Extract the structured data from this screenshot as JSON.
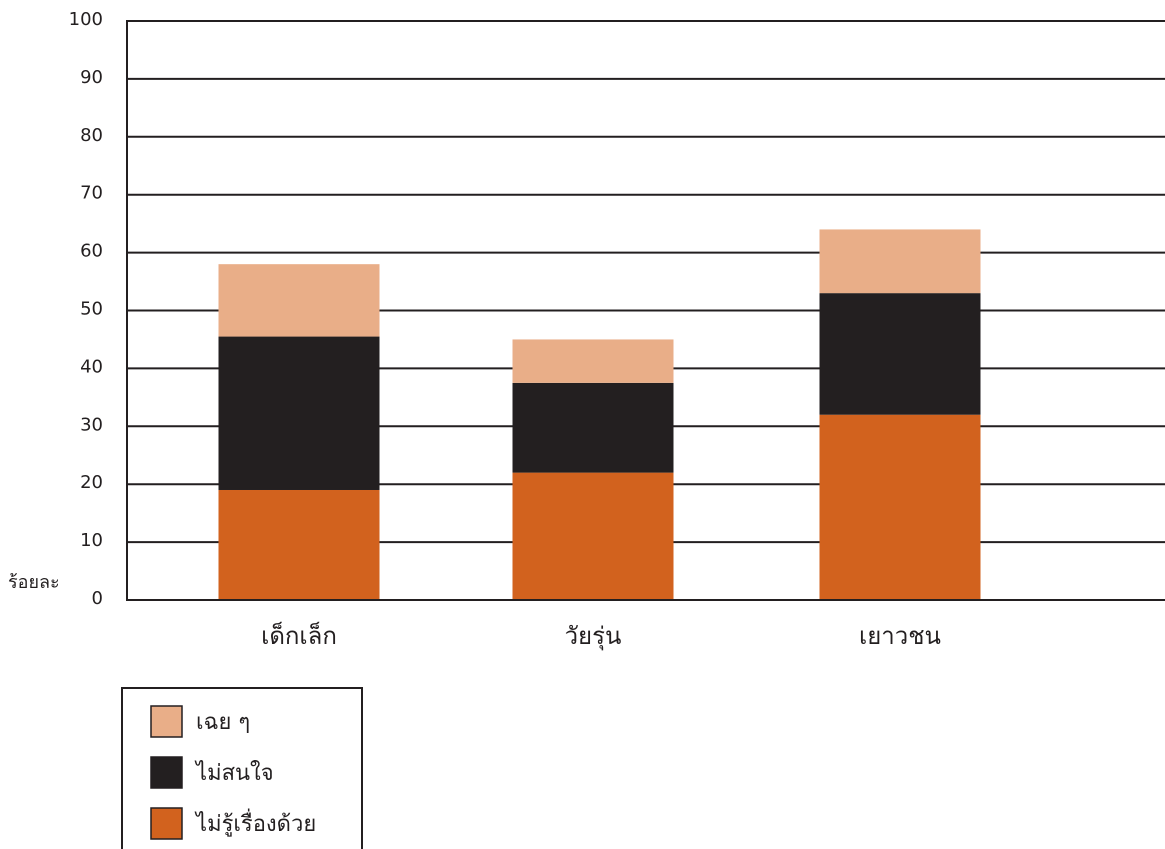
{
  "chart_data": {
    "type": "bar",
    "stacked": true,
    "categories": [
      "เด็กเล็ก",
      "วัยรุ่น",
      "เยาวชน"
    ],
    "series": [
      {
        "name": "ไม่รู้เรื่องด้วย",
        "values": [
          19,
          22,
          32
        ],
        "color": "#d2621e"
      },
      {
        "name": "ไม่สนใจ",
        "values": [
          26.5,
          15.5,
          21
        ],
        "color": "#231f20"
      },
      {
        "name": "เฉย ๆ",
        "values": [
          12.5,
          7.5,
          11
        ],
        "color": "#e9ae88"
      }
    ],
    "legend_order": [
      "เฉย ๆ",
      "ไม่สนใจ",
      "ไม่รู้เรื่องด้วย"
    ],
    "y_unit_label": "ร้อยละ",
    "ylim": [
      0,
      100
    ],
    "yticks": [
      0,
      10,
      20,
      30,
      40,
      50,
      60,
      70,
      80,
      90,
      100
    ],
    "grid": true,
    "legend_position": "bottom-left"
  }
}
